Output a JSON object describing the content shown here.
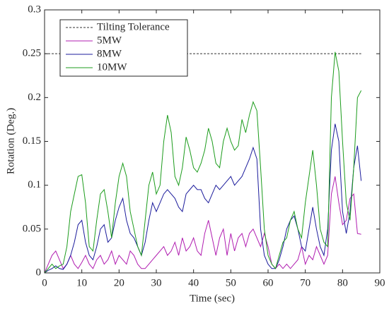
{
  "chart_data": {
    "type": "line",
    "xlabel": "Time (sec)",
    "ylabel": "Rotation (Deg.)",
    "xlim": [
      0,
      90
    ],
    "xticks": [
      0,
      10,
      20,
      30,
      40,
      50,
      60,
      70,
      80,
      90
    ],
    "ylim": [
      0,
      0.3
    ],
    "yticks": [
      0,
      0.05,
      0.1,
      0.15,
      0.2,
      0.25,
      0.3
    ],
    "legend": "upper left",
    "x": [
      0,
      1,
      2,
      3,
      4,
      5,
      6,
      7,
      8,
      9,
      10,
      11,
      12,
      13,
      14,
      15,
      16,
      17,
      18,
      19,
      20,
      21,
      22,
      23,
      24,
      25,
      26,
      27,
      28,
      29,
      30,
      31,
      32,
      33,
      34,
      35,
      36,
      37,
      38,
      39,
      40,
      41,
      42,
      43,
      44,
      45,
      46,
      47,
      48,
      49,
      50,
      51,
      52,
      53,
      54,
      55,
      56,
      57,
      58,
      59,
      60,
      61,
      62,
      63,
      64,
      65,
      66,
      67,
      68,
      69,
      70,
      71,
      72,
      73,
      74,
      75,
      76,
      77,
      78,
      79,
      80,
      81,
      82,
      83,
      84,
      85
    ],
    "series": [
      {
        "name": "Tilting Tolerance",
        "color": "#333333",
        "style": "dashed",
        "values": [
          0.25,
          0.25,
          0.25,
          0.25,
          0.25,
          0.25,
          0.25,
          0.25,
          0.25,
          0.25,
          0.25,
          0.25,
          0.25,
          0.25,
          0.25,
          0.25,
          0.25,
          0.25,
          0.25,
          0.25,
          0.25,
          0.25,
          0.25,
          0.25,
          0.25,
          0.25,
          0.25,
          0.25,
          0.25,
          0.25,
          0.25,
          0.25,
          0.25,
          0.25,
          0.25,
          0.25,
          0.25,
          0.25,
          0.25,
          0.25,
          0.25,
          0.25,
          0.25,
          0.25,
          0.25,
          0.25,
          0.25,
          0.25,
          0.25,
          0.25,
          0.25,
          0.25,
          0.25,
          0.25,
          0.25,
          0.25,
          0.25,
          0.25,
          0.25,
          0.25,
          0.25,
          0.25,
          0.25,
          0.25,
          0.25,
          0.25,
          0.25,
          0.25,
          0.25,
          0.25,
          0.25,
          0.25,
          0.25,
          0.25,
          0.25,
          0.25,
          0.25,
          0.25,
          0.25,
          0.25,
          0.25,
          0.25,
          0.25,
          0.25,
          0.25,
          0.25
        ]
      },
      {
        "name": "5MW",
        "color": "#b01cb0",
        "style": "solid",
        "values": [
          0,
          0.01,
          0.02,
          0.025,
          0.015,
          0.005,
          0.01,
          0.02,
          0.01,
          0.005,
          0.012,
          0.02,
          0.01,
          0.005,
          0.015,
          0.02,
          0.01,
          0.015,
          0.025,
          0.01,
          0.02,
          0.015,
          0.01,
          0.025,
          0.02,
          0.01,
          0.005,
          0.005,
          0.01,
          0.015,
          0.02,
          0.025,
          0.03,
          0.02,
          0.025,
          0.035,
          0.02,
          0.04,
          0.025,
          0.03,
          0.04,
          0.025,
          0.02,
          0.045,
          0.06,
          0.04,
          0.02,
          0.04,
          0.05,
          0.02,
          0.045,
          0.025,
          0.04,
          0.045,
          0.03,
          0.045,
          0.05,
          0.04,
          0.03,
          0.045,
          0.03,
          0.01,
          0.005,
          0.01,
          0.005,
          0.01,
          0.005,
          0.01,
          0.015,
          0.03,
          0.01,
          0.02,
          0.015,
          0.03,
          0.02,
          0.01,
          0.02,
          0.09,
          0.11,
          0.08,
          0.055,
          0.06,
          0.085,
          0.09,
          0.045,
          0.044
        ]
      },
      {
        "name": "8MW",
        "color": "#1c1c9c",
        "style": "solid",
        "values": [
          0,
          0.003,
          0.005,
          0.008,
          0.005,
          0.004,
          0.01,
          0.02,
          0.035,
          0.055,
          0.06,
          0.035,
          0.02,
          0.015,
          0.03,
          0.05,
          0.055,
          0.035,
          0.04,
          0.06,
          0.075,
          0.085,
          0.06,
          0.045,
          0.04,
          0.03,
          0.02,
          0.035,
          0.06,
          0.08,
          0.07,
          0.08,
          0.09,
          0.095,
          0.09,
          0.085,
          0.075,
          0.07,
          0.09,
          0.095,
          0.1,
          0.095,
          0.095,
          0.085,
          0.08,
          0.09,
          0.1,
          0.095,
          0.1,
          0.105,
          0.11,
          0.1,
          0.105,
          0.11,
          0.12,
          0.13,
          0.143,
          0.13,
          0.05,
          0.02,
          0.01,
          0.005,
          0.005,
          0.015,
          0.03,
          0.05,
          0.06,
          0.065,
          0.05,
          0.03,
          0.025,
          0.05,
          0.075,
          0.05,
          0.03,
          0.02,
          0.05,
          0.14,
          0.17,
          0.15,
          0.07,
          0.045,
          0.07,
          0.12,
          0.145,
          0.105
        ]
      },
      {
        "name": "10MW",
        "color": "#1c9c1c",
        "style": "solid",
        "values": [
          0,
          0.005,
          0.01,
          0.005,
          0.008,
          0.01,
          0.03,
          0.07,
          0.09,
          0.11,
          0.112,
          0.08,
          0.03,
          0.025,
          0.06,
          0.09,
          0.095,
          0.07,
          0.04,
          0.08,
          0.11,
          0.125,
          0.11,
          0.07,
          0.05,
          0.03,
          0.02,
          0.06,
          0.1,
          0.115,
          0.09,
          0.1,
          0.15,
          0.18,
          0.16,
          0.11,
          0.1,
          0.12,
          0.155,
          0.14,
          0.12,
          0.115,
          0.125,
          0.14,
          0.165,
          0.15,
          0.125,
          0.12,
          0.15,
          0.165,
          0.15,
          0.14,
          0.145,
          0.175,
          0.16,
          0.18,
          0.195,
          0.185,
          0.12,
          0.05,
          0.02,
          0.01,
          0.005,
          0.02,
          0.035,
          0.04,
          0.06,
          0.07,
          0.05,
          0.04,
          0.08,
          0.11,
          0.14,
          0.1,
          0.05,
          0.035,
          0.03,
          0.2,
          0.252,
          0.23,
          0.15,
          0.08,
          0.06,
          0.12,
          0.2,
          0.208
        ]
      }
    ]
  }
}
